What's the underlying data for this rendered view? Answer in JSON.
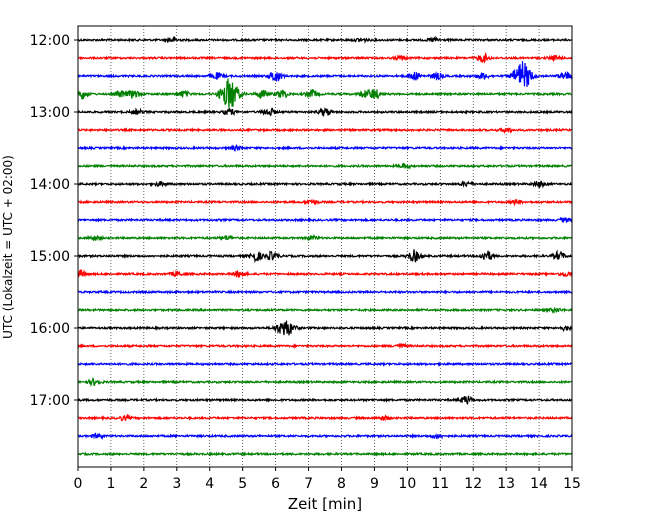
{
  "chart_data": {
    "type": "line",
    "title": "",
    "xlabel": "Zeit  [min]",
    "ylabel": "UTC (Lokalzeit = UTC + 02:00)",
    "xlim": [
      0,
      15
    ],
    "x_ticks": [
      0,
      1,
      2,
      3,
      4,
      5,
      6,
      7,
      8,
      9,
      10,
      11,
      12,
      13,
      14,
      15
    ],
    "y_ticks": [
      "12:00",
      "13:00",
      "14:00",
      "15:00",
      "16:00",
      "17:00"
    ],
    "grid": "vertical dotted",
    "start_time": "12:00",
    "end_time": "17:59",
    "minutes_per_trace": 15,
    "colors": [
      "#000000",
      "#ff0000",
      "#0000ff",
      "#008000"
    ],
    "traces": [
      {
        "start": "12:00",
        "color": "#000000",
        "events": [
          {
            "t": 2.9,
            "amp": 2
          },
          {
            "t": 8.6,
            "amp": 2
          },
          {
            "t": 10.8,
            "amp": 2
          }
        ]
      },
      {
        "start": "12:15",
        "color": "#ff0000",
        "events": [
          {
            "t": 9.8,
            "amp": 2
          },
          {
            "t": 12.3,
            "amp": 4
          },
          {
            "t": 14.5,
            "amp": 2
          }
        ]
      },
      {
        "start": "12:30",
        "color": "#0000ff",
        "events": [
          {
            "t": 4.2,
            "amp": 3
          },
          {
            "t": 6.0,
            "amp": 6
          },
          {
            "t": 10.2,
            "amp": 4
          },
          {
            "t": 10.9,
            "amp": 3
          },
          {
            "t": 12.3,
            "amp": 3
          },
          {
            "t": 13.5,
            "amp": 14
          },
          {
            "t": 14.8,
            "amp": 4
          }
        ]
      },
      {
        "start": "12:45",
        "color": "#008000",
        "events": [
          {
            "t": 0.1,
            "amp": 5
          },
          {
            "t": 1.3,
            "amp": 3
          },
          {
            "t": 1.7,
            "amp": 4
          },
          {
            "t": 3.2,
            "amp": 3
          },
          {
            "t": 4.6,
            "amp": 16
          },
          {
            "t": 5.6,
            "amp": 4
          },
          {
            "t": 6.2,
            "amp": 4
          },
          {
            "t": 7.1,
            "amp": 4
          },
          {
            "t": 8.7,
            "amp": 3
          },
          {
            "t": 9.0,
            "amp": 5
          }
        ]
      },
      {
        "start": "13:00",
        "color": "#000000",
        "events": [
          {
            "t": 1.8,
            "amp": 2
          },
          {
            "t": 4.6,
            "amp": 3
          },
          {
            "t": 5.8,
            "amp": 4
          },
          {
            "t": 7.5,
            "amp": 4
          }
        ]
      },
      {
        "start": "13:15",
        "color": "#ff0000",
        "events": [
          {
            "t": 13.0,
            "amp": 2
          }
        ]
      },
      {
        "start": "13:30",
        "color": "#0000ff",
        "events": [
          {
            "t": 4.8,
            "amp": 2
          }
        ]
      },
      {
        "start": "13:45",
        "color": "#008000",
        "events": [
          {
            "t": 9.9,
            "amp": 2
          }
        ]
      },
      {
        "start": "14:00",
        "color": "#000000",
        "events": [
          {
            "t": 2.5,
            "amp": 2
          },
          {
            "t": 11.8,
            "amp": 2
          },
          {
            "t": 14.0,
            "amp": 3
          }
        ]
      },
      {
        "start": "14:15",
        "color": "#ff0000",
        "events": [
          {
            "t": 7.1,
            "amp": 2
          },
          {
            "t": 13.3,
            "amp": 2
          }
        ]
      },
      {
        "start": "14:30",
        "color": "#0000ff",
        "events": [
          {
            "t": 14.8,
            "amp": 2
          }
        ]
      },
      {
        "start": "14:45",
        "color": "#008000",
        "events": [
          {
            "t": 0.5,
            "amp": 2
          },
          {
            "t": 4.5,
            "amp": 2
          },
          {
            "t": 7.1,
            "amp": 2
          }
        ]
      },
      {
        "start": "15:00",
        "color": "#000000",
        "events": [
          {
            "t": 5.4,
            "amp": 5
          },
          {
            "t": 5.9,
            "amp": 4
          },
          {
            "t": 10.2,
            "amp": 6
          },
          {
            "t": 12.4,
            "amp": 5
          },
          {
            "t": 14.6,
            "amp": 4
          }
        ]
      },
      {
        "start": "15:15",
        "color": "#ff0000",
        "events": [
          {
            "t": 0.1,
            "amp": 3
          },
          {
            "t": 3.0,
            "amp": 2
          },
          {
            "t": 4.9,
            "amp": 3
          },
          {
            "t": 14.8,
            "amp": 2
          }
        ]
      },
      {
        "start": "15:30",
        "color": "#0000ff",
        "events": []
      },
      {
        "start": "15:45",
        "color": "#008000",
        "events": [
          {
            "t": 14.5,
            "amp": 2
          }
        ]
      },
      {
        "start": "16:00",
        "color": "#000000",
        "events": [
          {
            "t": 6.3,
            "amp": 8
          },
          {
            "t": 14.8,
            "amp": 2
          }
        ]
      },
      {
        "start": "16:15",
        "color": "#ff0000",
        "events": [
          {
            "t": 9.8,
            "amp": 2
          }
        ]
      },
      {
        "start": "16:30",
        "color": "#0000ff",
        "events": []
      },
      {
        "start": "16:45",
        "color": "#008000",
        "events": [
          {
            "t": 0.5,
            "amp": 3
          }
        ]
      },
      {
        "start": "17:00",
        "color": "#000000",
        "events": [
          {
            "t": 11.8,
            "amp": 4
          }
        ]
      },
      {
        "start": "17:15",
        "color": "#ff0000",
        "events": [
          {
            "t": 1.4,
            "amp": 2
          },
          {
            "t": 9.3,
            "amp": 2
          }
        ]
      },
      {
        "start": "17:30",
        "color": "#0000ff",
        "events": [
          {
            "t": 0.6,
            "amp": 2
          },
          {
            "t": 10.9,
            "amp": 2
          }
        ]
      },
      {
        "start": "17:45",
        "color": "#008000",
        "events": []
      }
    ]
  }
}
